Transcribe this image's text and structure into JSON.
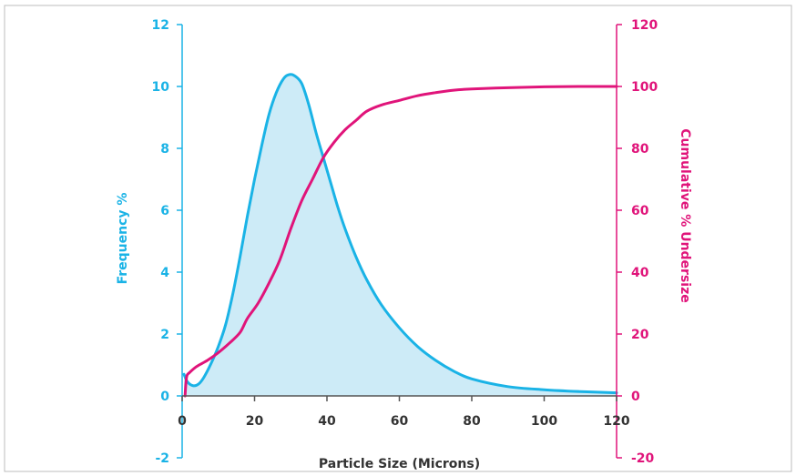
{
  "chart_data": {
    "type": "line",
    "xlabel": "Particle Size (Microns)",
    "ylabel_left": "Frequency %",
    "ylabel_right": "Cumulative % Undersize",
    "xlim": [
      0,
      120
    ],
    "ylim_left": [
      -2,
      12
    ],
    "ylim_right": [
      -20,
      120
    ],
    "x_ticks": [
      "0",
      "20",
      "40",
      "60",
      "80",
      "100",
      "120"
    ],
    "y_left_ticks": [
      "-2",
      "0",
      "2",
      "4",
      "6",
      "8",
      "10",
      "12"
    ],
    "y_right_ticks": [
      "-20",
      "0",
      "20",
      "40",
      "60",
      "80",
      "100",
      "120"
    ],
    "grid": false,
    "series": [
      {
        "axis": "left",
        "style": "filled-area",
        "color": "#1ab3e6",
        "fill": "#cdebf7",
        "points": [
          [
            0.5,
            0.7
          ],
          [
            1.5,
            0.45
          ],
          [
            3,
            0.33
          ],
          [
            4.5,
            0.38
          ],
          [
            6,
            0.6
          ],
          [
            8,
            1.05
          ],
          [
            10,
            1.6
          ],
          [
            12,
            2.3
          ],
          [
            14,
            3.3
          ],
          [
            16,
            4.5
          ],
          [
            18,
            5.8
          ],
          [
            20,
            7.0
          ],
          [
            22,
            8.1
          ],
          [
            24,
            9.1
          ],
          [
            26,
            9.8
          ],
          [
            28,
            10.25
          ],
          [
            29.5,
            10.38
          ],
          [
            31,
            10.35
          ],
          [
            33,
            10.1
          ],
          [
            35,
            9.4
          ],
          [
            37,
            8.5
          ],
          [
            39,
            7.7
          ],
          [
            41,
            6.9
          ],
          [
            43,
            6.1
          ],
          [
            45,
            5.4
          ],
          [
            48,
            4.5
          ],
          [
            51,
            3.75
          ],
          [
            55,
            2.95
          ],
          [
            60,
            2.2
          ],
          [
            65,
            1.6
          ],
          [
            70,
            1.15
          ],
          [
            75,
            0.8
          ],
          [
            80,
            0.55
          ],
          [
            90,
            0.3
          ],
          [
            100,
            0.2
          ],
          [
            110,
            0.14
          ],
          [
            120,
            0.1
          ]
        ]
      },
      {
        "axis": "right",
        "style": "line",
        "color": "#e0147a",
        "points": [
          [
            0.8,
            0
          ],
          [
            1.0,
            3.5
          ],
          [
            1.3,
            6.5
          ],
          [
            2,
            7.5
          ],
          [
            4,
            9.5
          ],
          [
            7,
            11.5
          ],
          [
            10,
            14
          ],
          [
            13,
            17
          ],
          [
            16,
            20.5
          ],
          [
            18,
            25
          ],
          [
            21,
            30
          ],
          [
            24,
            36.5
          ],
          [
            27,
            44
          ],
          [
            30,
            54
          ],
          [
            33,
            63
          ],
          [
            36,
            70
          ],
          [
            39,
            77
          ],
          [
            42,
            82
          ],
          [
            45,
            86
          ],
          [
            48,
            89
          ],
          [
            51,
            92
          ],
          [
            55,
            94
          ],
          [
            60,
            95.5
          ],
          [
            65,
            97
          ],
          [
            70,
            98
          ],
          [
            75,
            98.8
          ],
          [
            80,
            99.2
          ],
          [
            90,
            99.6
          ],
          [
            100,
            99.9
          ],
          [
            110,
            100
          ],
          [
            120,
            100
          ]
        ]
      }
    ]
  }
}
